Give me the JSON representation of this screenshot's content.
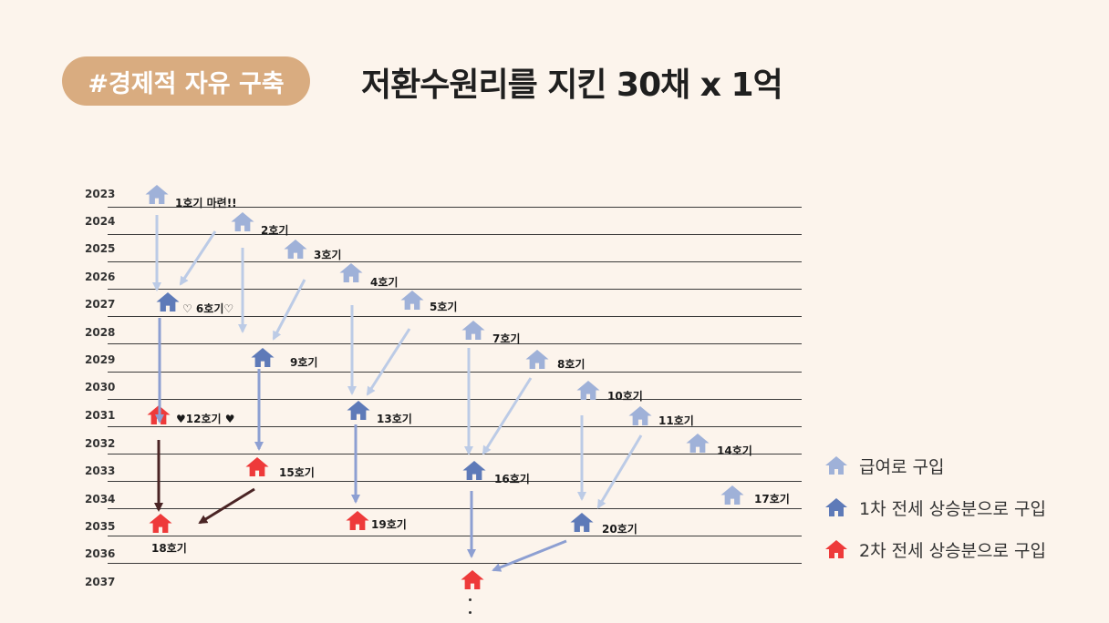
{
  "tag": "#경제적 자유 구축",
  "title": "저환수원리를 지킨 30채 x 1억",
  "colors": {
    "tier1": "#9fb1d8",
    "tier2": "#5e7ab8",
    "tier3": "#ee3a3a",
    "arrow_light": "#bccbe6",
    "arrow_mid": "#8d9fd2",
    "arrow_dark": "#4a2424"
  },
  "years": [
    "2023",
    "2024",
    "2025",
    "2026",
    "2027",
    "2028",
    "2029",
    "2030",
    "2031",
    "2032",
    "2033",
    "2034",
    "2035",
    "2036",
    "2037"
  ],
  "houses": [
    {
      "label": "1호기 마련!!",
      "tier": "tier1",
      "icon": "house-icon"
    },
    {
      "label": "2호기",
      "tier": "tier1",
      "icon": "house-icon"
    },
    {
      "label": "3호기",
      "tier": "tier1",
      "icon": "house-icon"
    },
    {
      "label": "4호기",
      "tier": "tier1",
      "icon": "house-icon"
    },
    {
      "label": "5호기",
      "tier": "tier1",
      "icon": "house-icon"
    },
    {
      "label": "♡ 6호기♡",
      "tier": "tier2",
      "icon": "house-icon"
    },
    {
      "label": "7호기",
      "tier": "tier1",
      "icon": "house-icon"
    },
    {
      "label": "8호기",
      "tier": "tier1",
      "icon": "house-icon"
    },
    {
      "label": "9호기",
      "tier": "tier2",
      "icon": "house-icon"
    },
    {
      "label": "10호기",
      "tier": "tier1",
      "icon": "house-icon"
    },
    {
      "label": "11호기",
      "tier": "tier1",
      "icon": "house-icon"
    },
    {
      "label": "♥12호기 ♥",
      "tier": "tier3",
      "icon": "house-icon"
    },
    {
      "label": "13호기",
      "tier": "tier2",
      "icon": "house-icon"
    },
    {
      "label": "14호기",
      "tier": "tier1",
      "icon": "house-icon"
    },
    {
      "label": "15호기",
      "tier": "tier3",
      "icon": "house-icon"
    },
    {
      "label": "16호기",
      "tier": "tier2",
      "icon": "house-icon"
    },
    {
      "label": "17호기",
      "tier": "tier1",
      "icon": "house-icon"
    },
    {
      "label": "18호기",
      "tier": "tier3",
      "icon": "house-icon"
    },
    {
      "label": "19호기",
      "tier": "tier3",
      "icon": "house-icon"
    },
    {
      "label": "20호기",
      "tier": "tier2",
      "icon": "house-icon"
    },
    {
      "label": "",
      "tier": "tier3",
      "icon": "house-icon"
    }
  ],
  "legend": [
    {
      "label": "급여로 구입",
      "tier": "tier1"
    },
    {
      "label": "1차 전세 상승분으로 구입",
      "tier": "tier2"
    },
    {
      "label": "2차 전세 상승분으로 구입",
      "tier": "tier3"
    }
  ]
}
